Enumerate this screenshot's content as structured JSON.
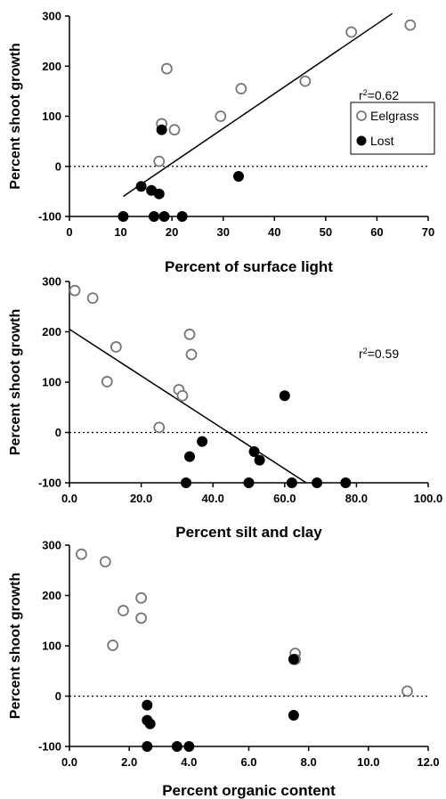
{
  "chart_data": [
    {
      "type": "scatter",
      "xlabel": "Percent of surface light",
      "ylabel": "Percent shoot growth",
      "xlim": [
        0,
        70
      ],
      "ylim": [
        -100,
        300
      ],
      "xticks": [
        "0",
        "10",
        "20",
        "30",
        "40",
        "50",
        "60",
        "70"
      ],
      "yticks": [
        "-100",
        "0",
        "100",
        "200",
        "300"
      ],
      "annotation": "0.62",
      "legend": {
        "placement": "right",
        "items": [
          "Eelgrass",
          "Lost"
        ]
      },
      "zero_line": "dotted",
      "series": [
        {
          "name": "Eelgrass",
          "marker": "open-circle",
          "points": [
            [
              17.5,
              10
            ],
            [
              18,
              85
            ],
            [
              19,
              195
            ],
            [
              20.5,
              73
            ],
            [
              29.5,
              100
            ],
            [
              33.5,
              155
            ],
            [
              46,
              170
            ],
            [
              55,
              268
            ],
            [
              66.5,
              282
            ]
          ]
        },
        {
          "name": "Lost",
          "marker": "filled-circle",
          "points": [
            [
              10.5,
              -100
            ],
            [
              14,
              -40
            ],
            [
              16,
              -48
            ],
            [
              17.5,
              -55
            ],
            [
              16.5,
              -100
            ],
            [
              18.5,
              -100
            ],
            [
              22,
              -100
            ],
            [
              33,
              -20
            ],
            [
              18,
              73
            ]
          ]
        }
      ],
      "trendline": [
        [
          10.5,
          -60
        ],
        [
          63,
          305
        ]
      ]
    },
    {
      "type": "scatter",
      "xlabel": "Percent silt and clay",
      "ylabel": "Percent shoot growth",
      "xlim": [
        0,
        100
      ],
      "ylim": [
        -100,
        300
      ],
      "xticks": [
        "0.0",
        "20.0",
        "40.0",
        "60.0",
        "80.0",
        "100.0"
      ],
      "yticks": [
        "-100",
        "0",
        "100",
        "200",
        "300"
      ],
      "annotation": "0.59",
      "zero_line": "dotted",
      "series": [
        {
          "name": "Eelgrass",
          "marker": "open-circle",
          "points": [
            [
              1.5,
              282
            ],
            [
              6.5,
              267
            ],
            [
              10.5,
              101
            ],
            [
              13,
              170
            ],
            [
              25,
              10
            ],
            [
              30.5,
              85
            ],
            [
              31.5,
              73
            ],
            [
              33.5,
              195
            ],
            [
              34,
              155
            ]
          ]
        },
        {
          "name": "Lost",
          "marker": "filled-circle",
          "points": [
            [
              32.5,
              -100
            ],
            [
              33.5,
              -48
            ],
            [
              37,
              -18
            ],
            [
              50,
              -100
            ],
            [
              51.5,
              -38
            ],
            [
              53,
              -55
            ],
            [
              60,
              73
            ],
            [
              62,
              -100
            ],
            [
              69,
              -100
            ],
            [
              77,
              -100
            ]
          ]
        }
      ],
      "trendline": [
        [
          0,
          205
        ],
        [
          66,
          -100
        ]
      ]
    },
    {
      "type": "scatter",
      "xlabel": "Percent organic content",
      "ylabel": "Percent shoot growth",
      "xlim": [
        0,
        12
      ],
      "ylim": [
        -100,
        300
      ],
      "xticks": [
        "0.0",
        "2.0",
        "4.0",
        "6.0",
        "8.0",
        "10.0",
        "12.0"
      ],
      "yticks": [
        "-100",
        "0",
        "100",
        "200",
        "300"
      ],
      "zero_line": "dotted",
      "series": [
        {
          "name": "Eelgrass",
          "marker": "open-circle",
          "points": [
            [
              0.4,
              282
            ],
            [
              1.2,
              267
            ],
            [
              1.45,
              101
            ],
            [
              1.8,
              170
            ],
            [
              2.4,
              195
            ],
            [
              2.4,
              155
            ],
            [
              7.55,
              85
            ],
            [
              7.55,
              73
            ],
            [
              11.3,
              10
            ]
          ]
        },
        {
          "name": "Lost",
          "marker": "filled-circle",
          "points": [
            [
              2.6,
              -18
            ],
            [
              2.6,
              -48
            ],
            [
              2.7,
              -55
            ],
            [
              2.6,
              -100
            ],
            [
              3.6,
              -100
            ],
            [
              4.0,
              -100
            ],
            [
              7.5,
              73
            ],
            [
              7.5,
              -38
            ]
          ]
        }
      ]
    }
  ]
}
